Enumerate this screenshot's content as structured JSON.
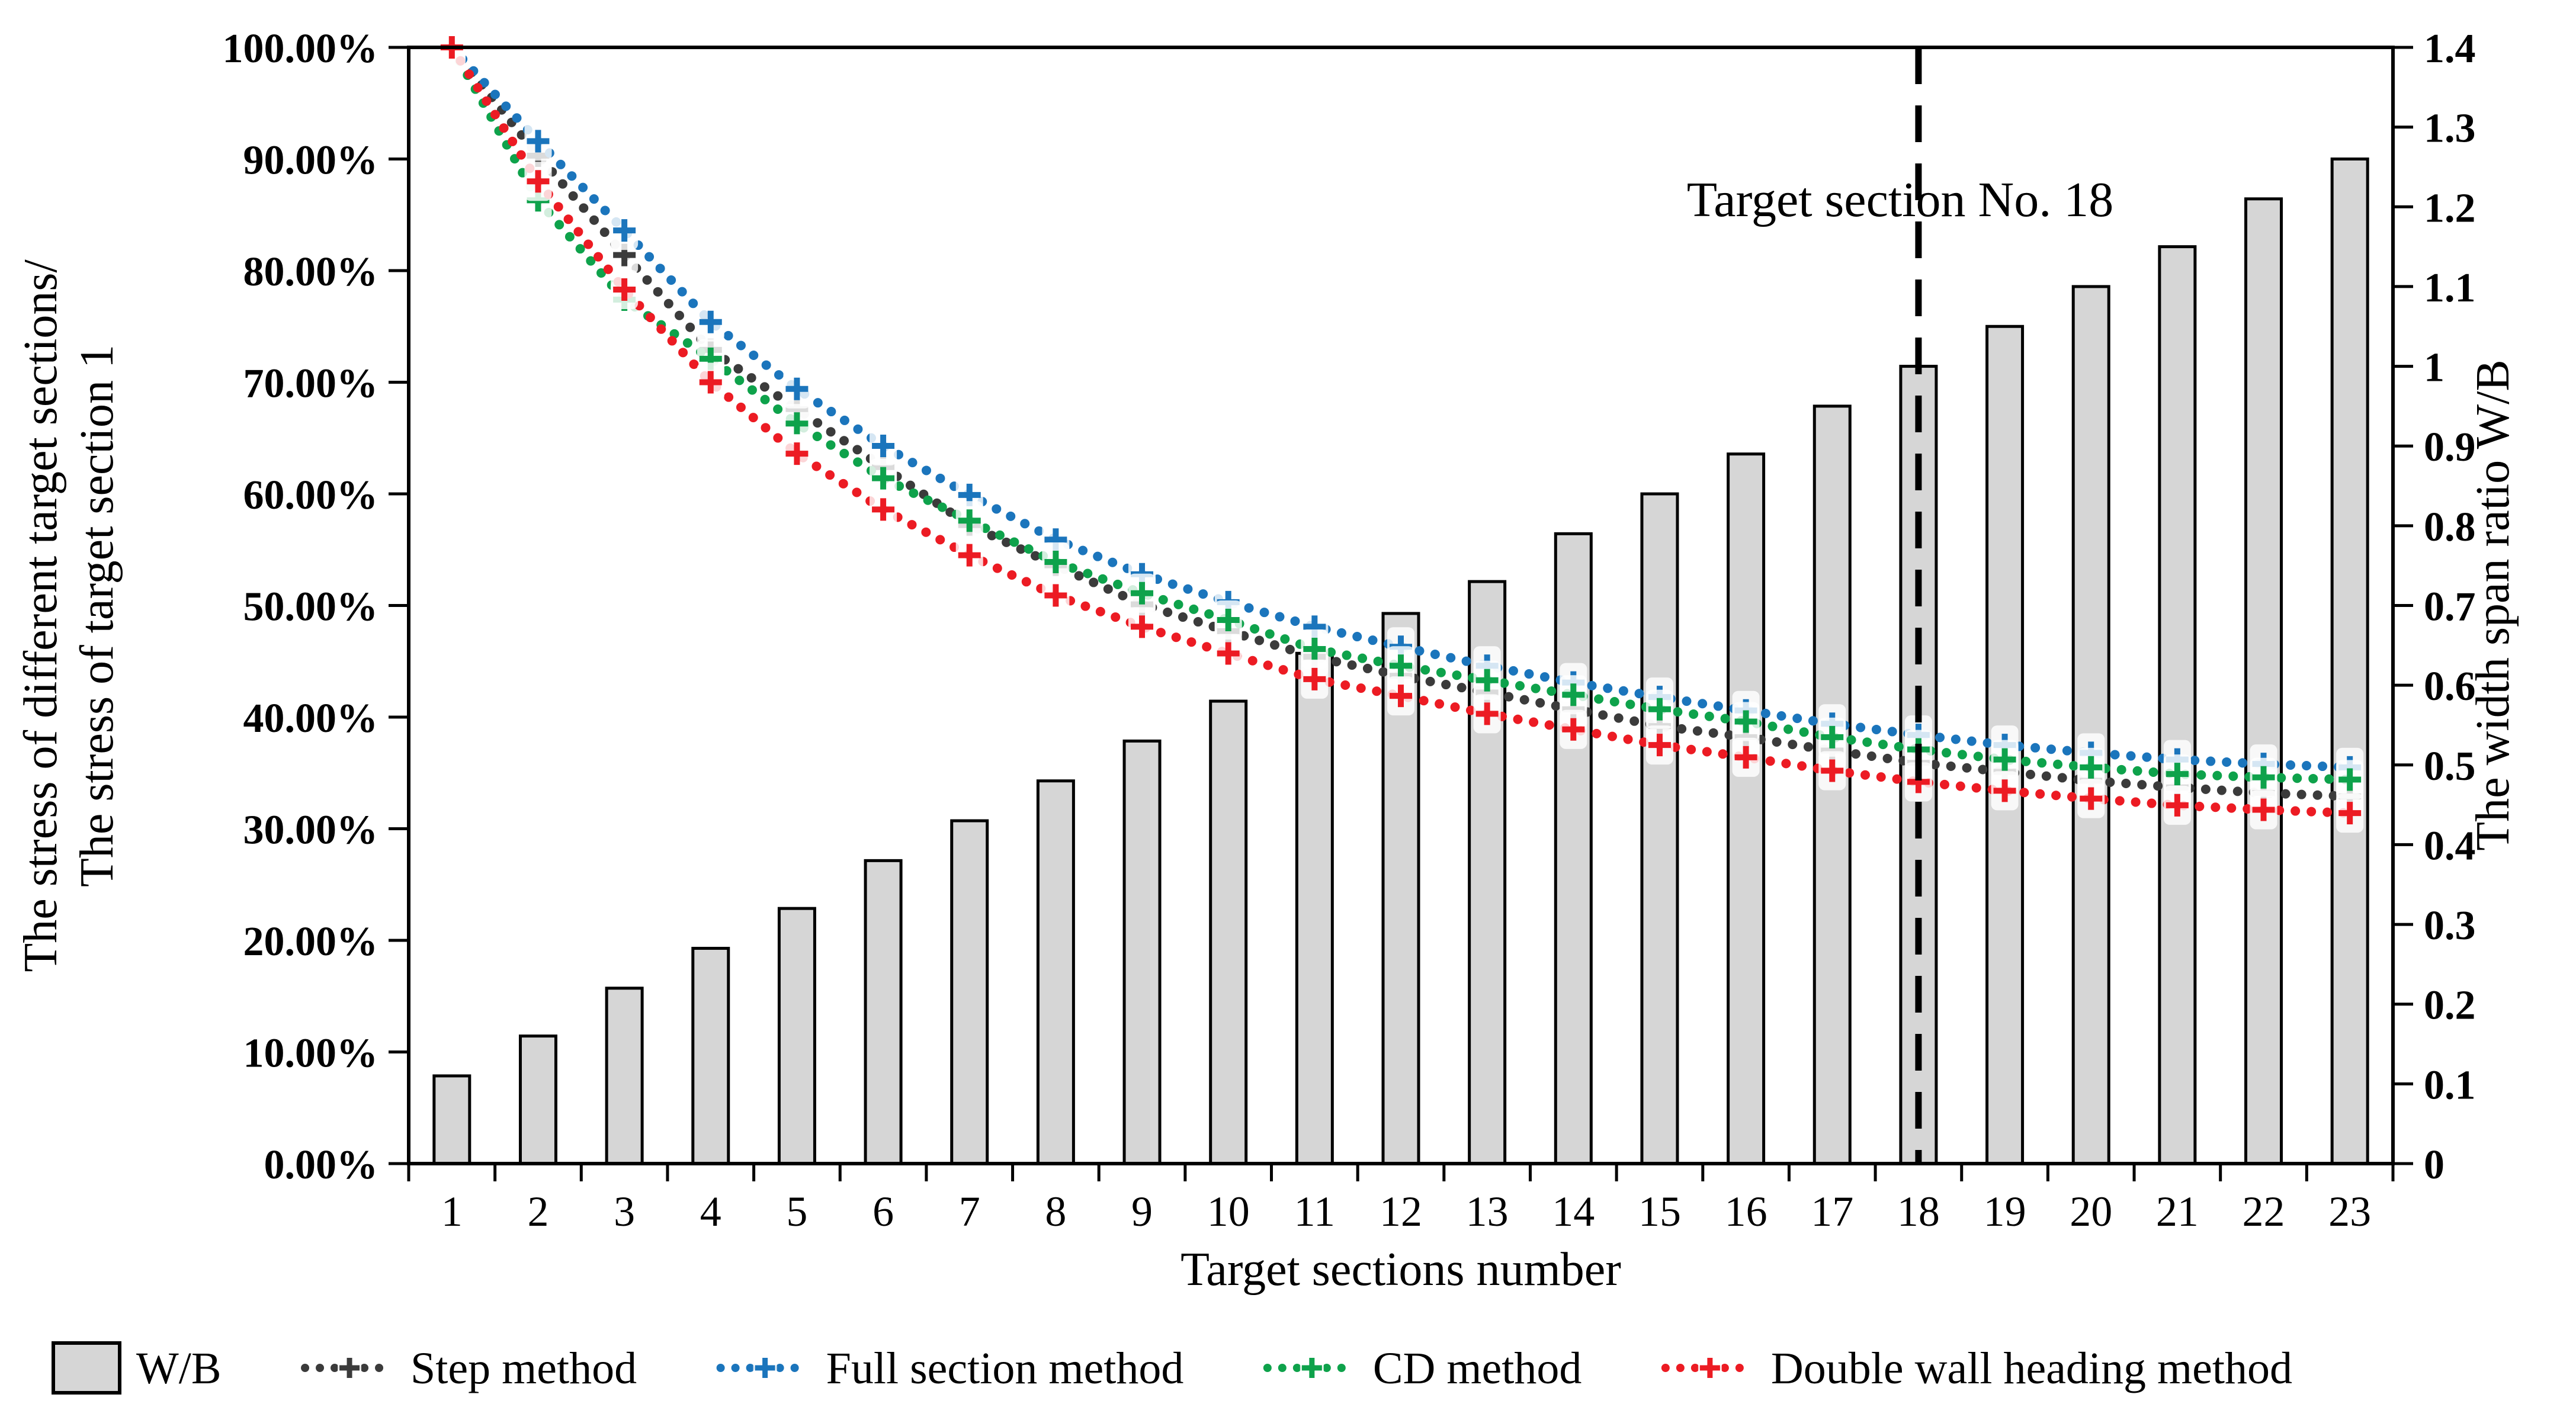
{
  "page": {
    "background": "#ffffff"
  },
  "chart_data": {
    "type": "combo-bar-line",
    "x_categories": [
      "1",
      "2",
      "3",
      "4",
      "5",
      "6",
      "7",
      "8",
      "9",
      "10",
      "11",
      "12",
      "13",
      "14",
      "15",
      "16",
      "17",
      "18",
      "19",
      "20",
      "21",
      "22",
      "23"
    ],
    "xlabel": "Target sections number",
    "left_axis": {
      "title_line1": "The stress of different target sections/",
      "title_line2": "The stress  of target section 1",
      "min": 0,
      "max": 100,
      "step": 10,
      "tick_labels": [
        "0.00%",
        "10.00%",
        "20.00%",
        "30.00%",
        "40.00%",
        "50.00%",
        "60.00%",
        "70.00%",
        "80.00%",
        "90.00%",
        "100.00%"
      ]
    },
    "right_axis": {
      "title": "The width span ratio W/B",
      "min": 0,
      "max": 1.4,
      "step": 0.1,
      "tick_labels": [
        "0",
        "0.1",
        "0.2",
        "0.3",
        "0.4",
        "0.5",
        "0.6",
        "0.7",
        "0.8",
        "0.9",
        "1",
        "1.1",
        "1.2",
        "1.3",
        "1.4"
      ]
    },
    "annotation": {
      "text": "Target section No. 18",
      "at_category": "18",
      "color": "#ff0000",
      "line_style": "dashed"
    },
    "bar_series": {
      "name": "W/B",
      "axis": "right",
      "fill": "#d6d6d6",
      "stroke": "#000000",
      "values": [
        0.11,
        0.16,
        0.22,
        0.27,
        0.32,
        0.38,
        0.43,
        0.48,
        0.53,
        0.58,
        0.64,
        0.69,
        0.73,
        0.79,
        0.84,
        0.89,
        0.95,
        1.0,
        1.05,
        1.1,
        1.15,
        1.21,
        1.26
      ]
    },
    "line_series": [
      {
        "name": "Step method",
        "color": "#3b3b3b",
        "axis": "left",
        "values": [
          100,
          90.3,
          81.4,
          72.9,
          67.6,
          62.4,
          57.2,
          53.6,
          50.1,
          47.7,
          45.4,
          43.7,
          42.2,
          40.7,
          39.2,
          38.2,
          37.0,
          35.9,
          35.1,
          34.3,
          33.7,
          33.2,
          32.9
        ]
      },
      {
        "name": "Full section method",
        "color": "#1b75bc",
        "axis": "left",
        "values": [
          100,
          91.6,
          83.6,
          75.4,
          69.4,
          64.3,
          59.9,
          55.9,
          52.8,
          50.3,
          48.1,
          46.3,
          44.6,
          43.1,
          41.8,
          40.6,
          39.4,
          38.4,
          37.5,
          36.8,
          36.2,
          35.8,
          35.5
        ]
      },
      {
        "name": "CD method",
        "color": "#0ea24b",
        "axis": "left",
        "values": [
          100,
          86.3,
          77.4,
          72.1,
          66.3,
          61.4,
          57.6,
          53.9,
          51.1,
          48.7,
          46.1,
          44.6,
          43.3,
          42.0,
          40.7,
          39.6,
          38.2,
          37.1,
          36.2,
          35.5,
          34.9,
          34.6,
          34.4
        ]
      },
      {
        "name": "Double wall heading method",
        "color": "#ec1b23",
        "axis": "left",
        "values": [
          100,
          88.0,
          78.3,
          70.0,
          63.6,
          58.6,
          54.5,
          50.9,
          48.1,
          45.7,
          43.4,
          41.9,
          40.3,
          38.9,
          37.5,
          36.4,
          35.2,
          34.2,
          33.4,
          32.7,
          32.1,
          31.7,
          31.4
        ]
      }
    ],
    "legend": {
      "position": "bottom",
      "items": [
        "W/B",
        "Step method",
        "Full section method",
        "CD method",
        "Double wall heading method"
      ]
    }
  }
}
